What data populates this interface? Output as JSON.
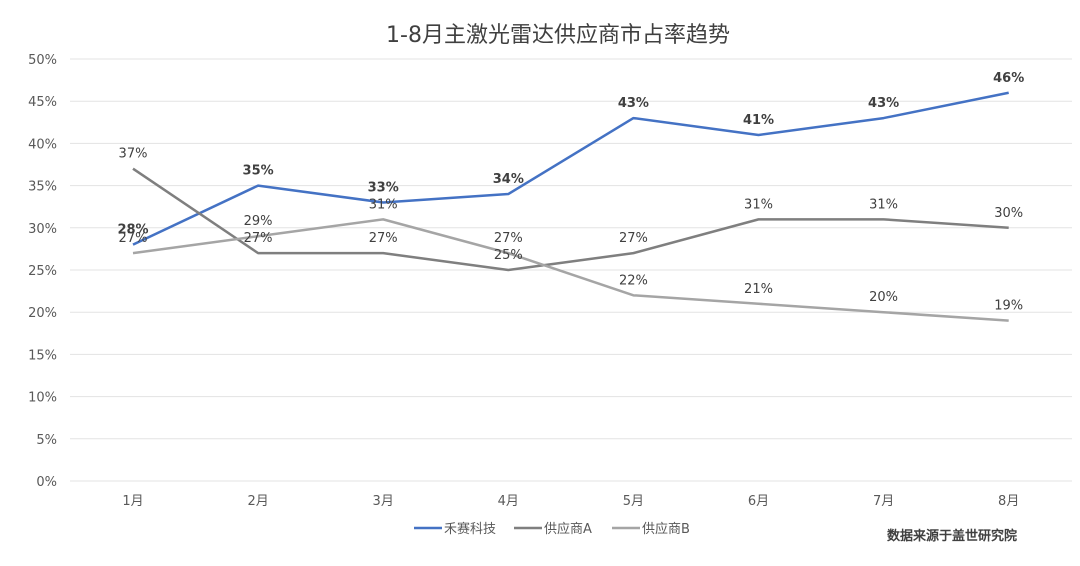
{
  "chart_data": {
    "type": "line",
    "title": "1-8月主激光雷达供应商市占率趋势",
    "xlabel": "",
    "ylabel": "",
    "categories": [
      "1月",
      "2月",
      "3月",
      "4月",
      "5月",
      "6月",
      "7月",
      "8月"
    ],
    "series": [
      {
        "name": "禾赛科技",
        "color": "#4472C4",
        "values": [
          28,
          35,
          33,
          34,
          43,
          41,
          43,
          46
        ],
        "labels_bold": true
      },
      {
        "name": "供应商A",
        "color": "#7F7F7F",
        "values": [
          37,
          27,
          27,
          25,
          27,
          31,
          31,
          30
        ],
        "labels_bold": false
      },
      {
        "name": "供应商B",
        "color": "#A5A5A5",
        "values": [
          27,
          29,
          31,
          27,
          22,
          21,
          20,
          19
        ],
        "labels_bold": false
      }
    ],
    "ylim": [
      0,
      50
    ],
    "yticks": [
      "0%",
      "5%",
      "10%",
      "15%",
      "20%",
      "25%",
      "30%",
      "35%",
      "40%",
      "45%",
      "50%"
    ],
    "grid": true,
    "legend_position": "bottom",
    "value_suffix": "%"
  },
  "footer": {
    "source": "数据来源于盖世研究院"
  }
}
